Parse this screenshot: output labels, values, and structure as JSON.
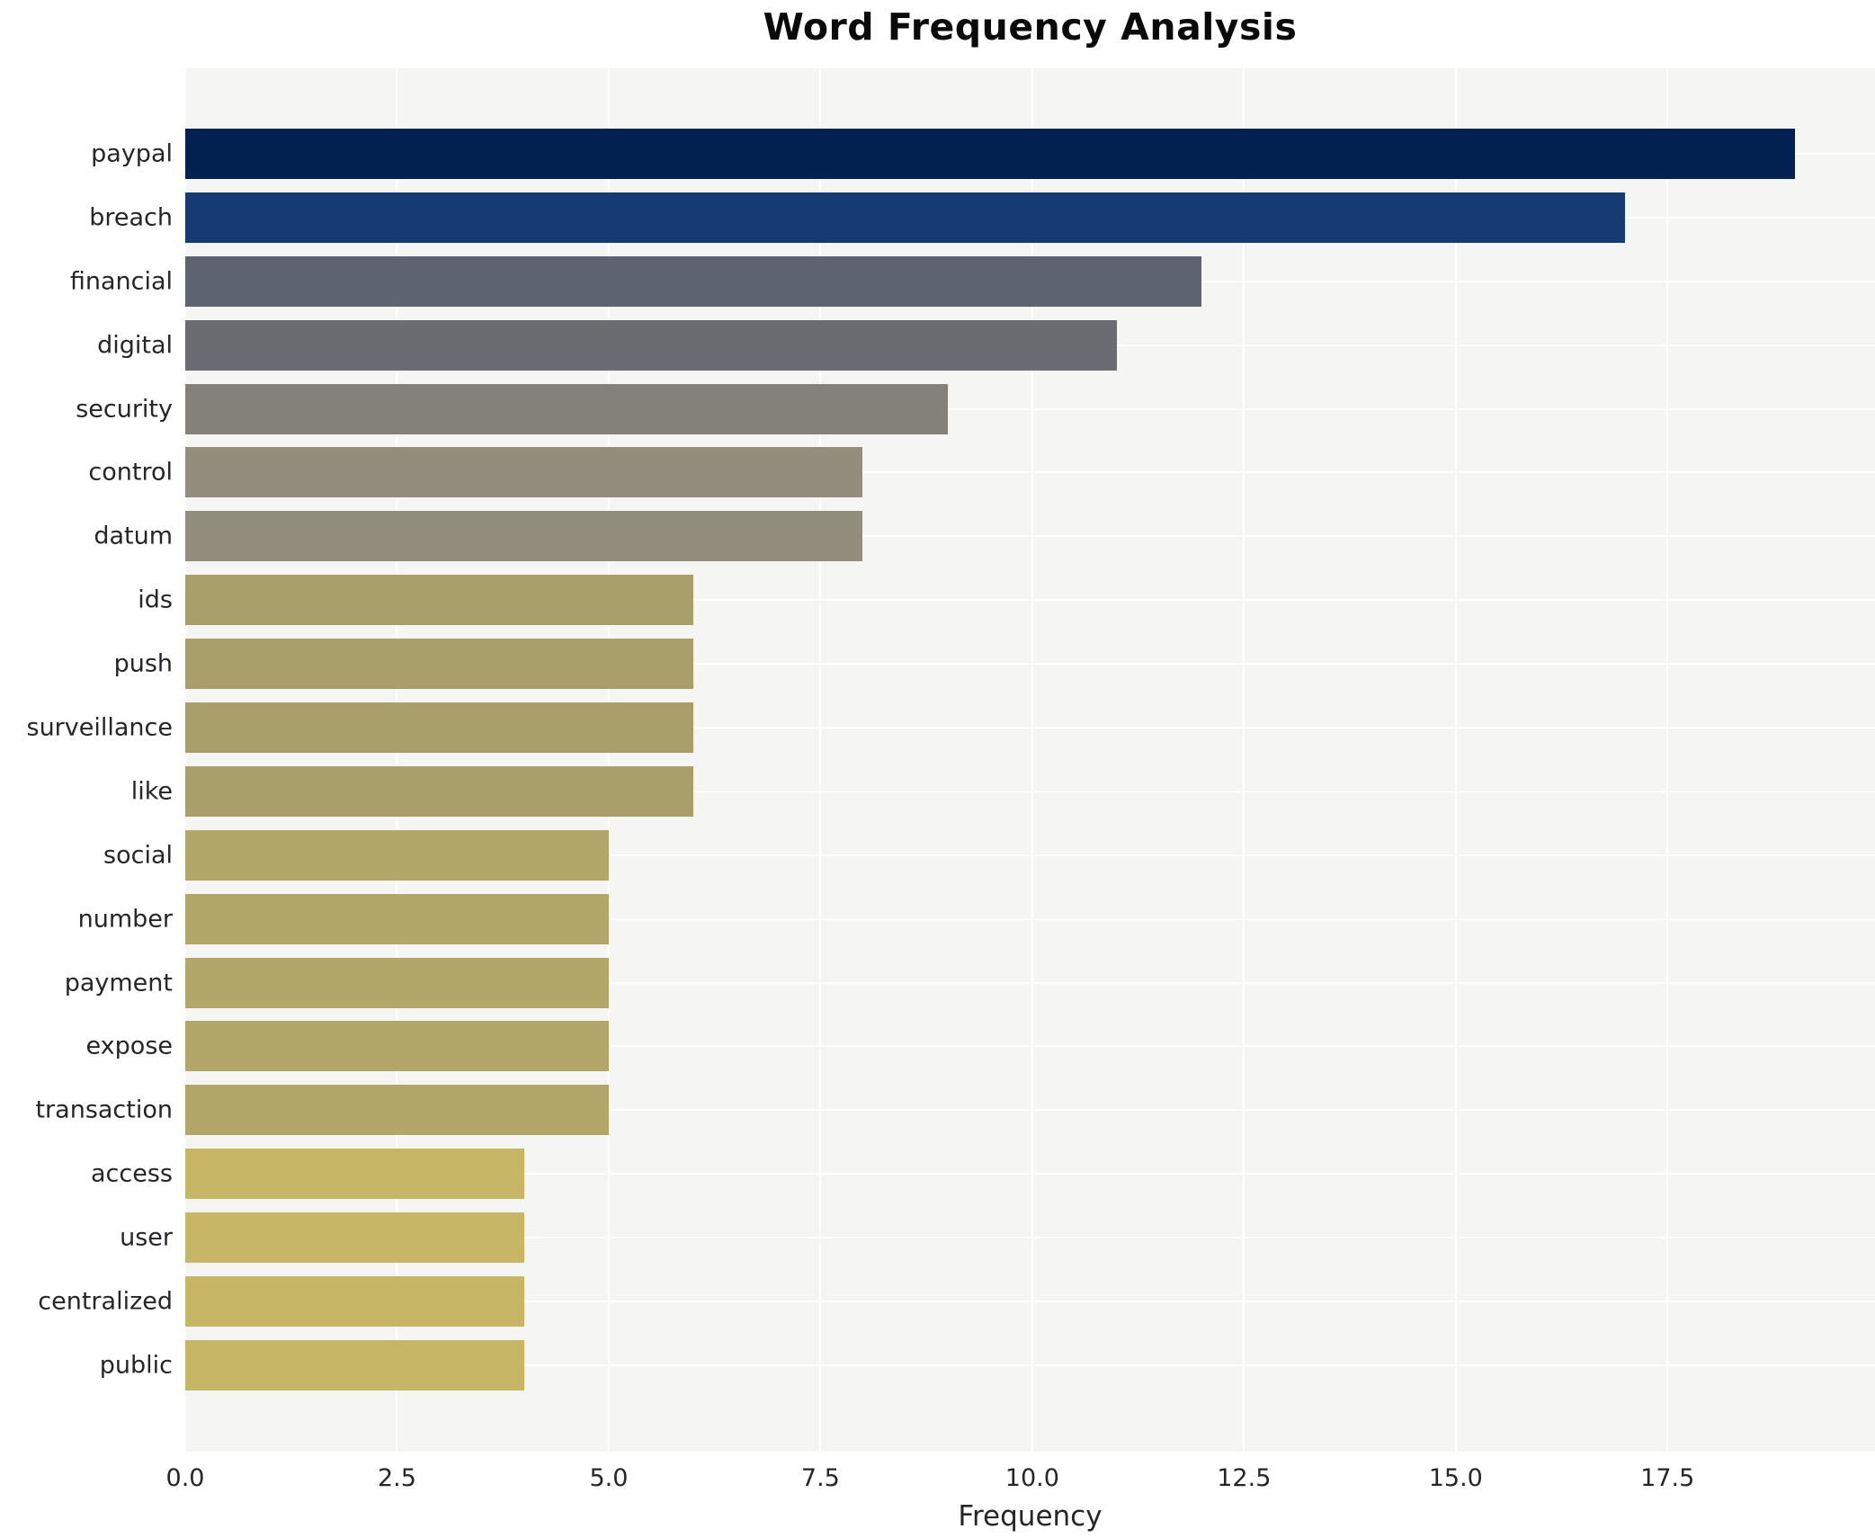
{
  "chart_data": {
    "type": "bar",
    "orientation": "horizontal",
    "title": "Word Frequency Analysis",
    "xlabel": "Frequency",
    "ylabel": "",
    "categories": [
      "paypal",
      "breach",
      "financial",
      "digital",
      "security",
      "control",
      "datum",
      "ids",
      "push",
      "surveillance",
      "like",
      "social",
      "number",
      "payment",
      "expose",
      "transaction",
      "access",
      "user",
      "centralized",
      "public"
    ],
    "values": [
      19,
      17,
      12,
      11,
      9,
      8,
      8,
      6,
      6,
      6,
      6,
      5,
      5,
      5,
      5,
      5,
      4,
      4,
      4,
      4
    ],
    "bar_colors": [
      "#012150",
      "#163a72",
      "#5e6370",
      "#6a6c72",
      "#838179",
      "#928d7c",
      "#928d7c",
      "#a89f6a",
      "#a89f6a",
      "#a89f6a",
      "#a89f6a",
      "#b2a668",
      "#b2a668",
      "#b2a668",
      "#b2a668",
      "#b2a668",
      "#c6b666",
      "#c6b666",
      "#c6b666",
      "#c6b666"
    ],
    "xlim": [
      0,
      19.95
    ],
    "xticks": [
      0.0,
      2.5,
      5.0,
      7.5,
      10.0,
      12.5,
      15.0,
      17.5
    ],
    "xtick_labels": [
      "0.0",
      "2.5",
      "5.0",
      "7.5",
      "10.0",
      "12.5",
      "15.0",
      "17.5"
    ],
    "grid": true,
    "grid_color": "#ffffff",
    "plot_background": "#f5f5f3",
    "figure_background": "#ffffff",
    "legend": "none",
    "title_color": "#0a0a0a",
    "tick_color": "#262626"
  }
}
